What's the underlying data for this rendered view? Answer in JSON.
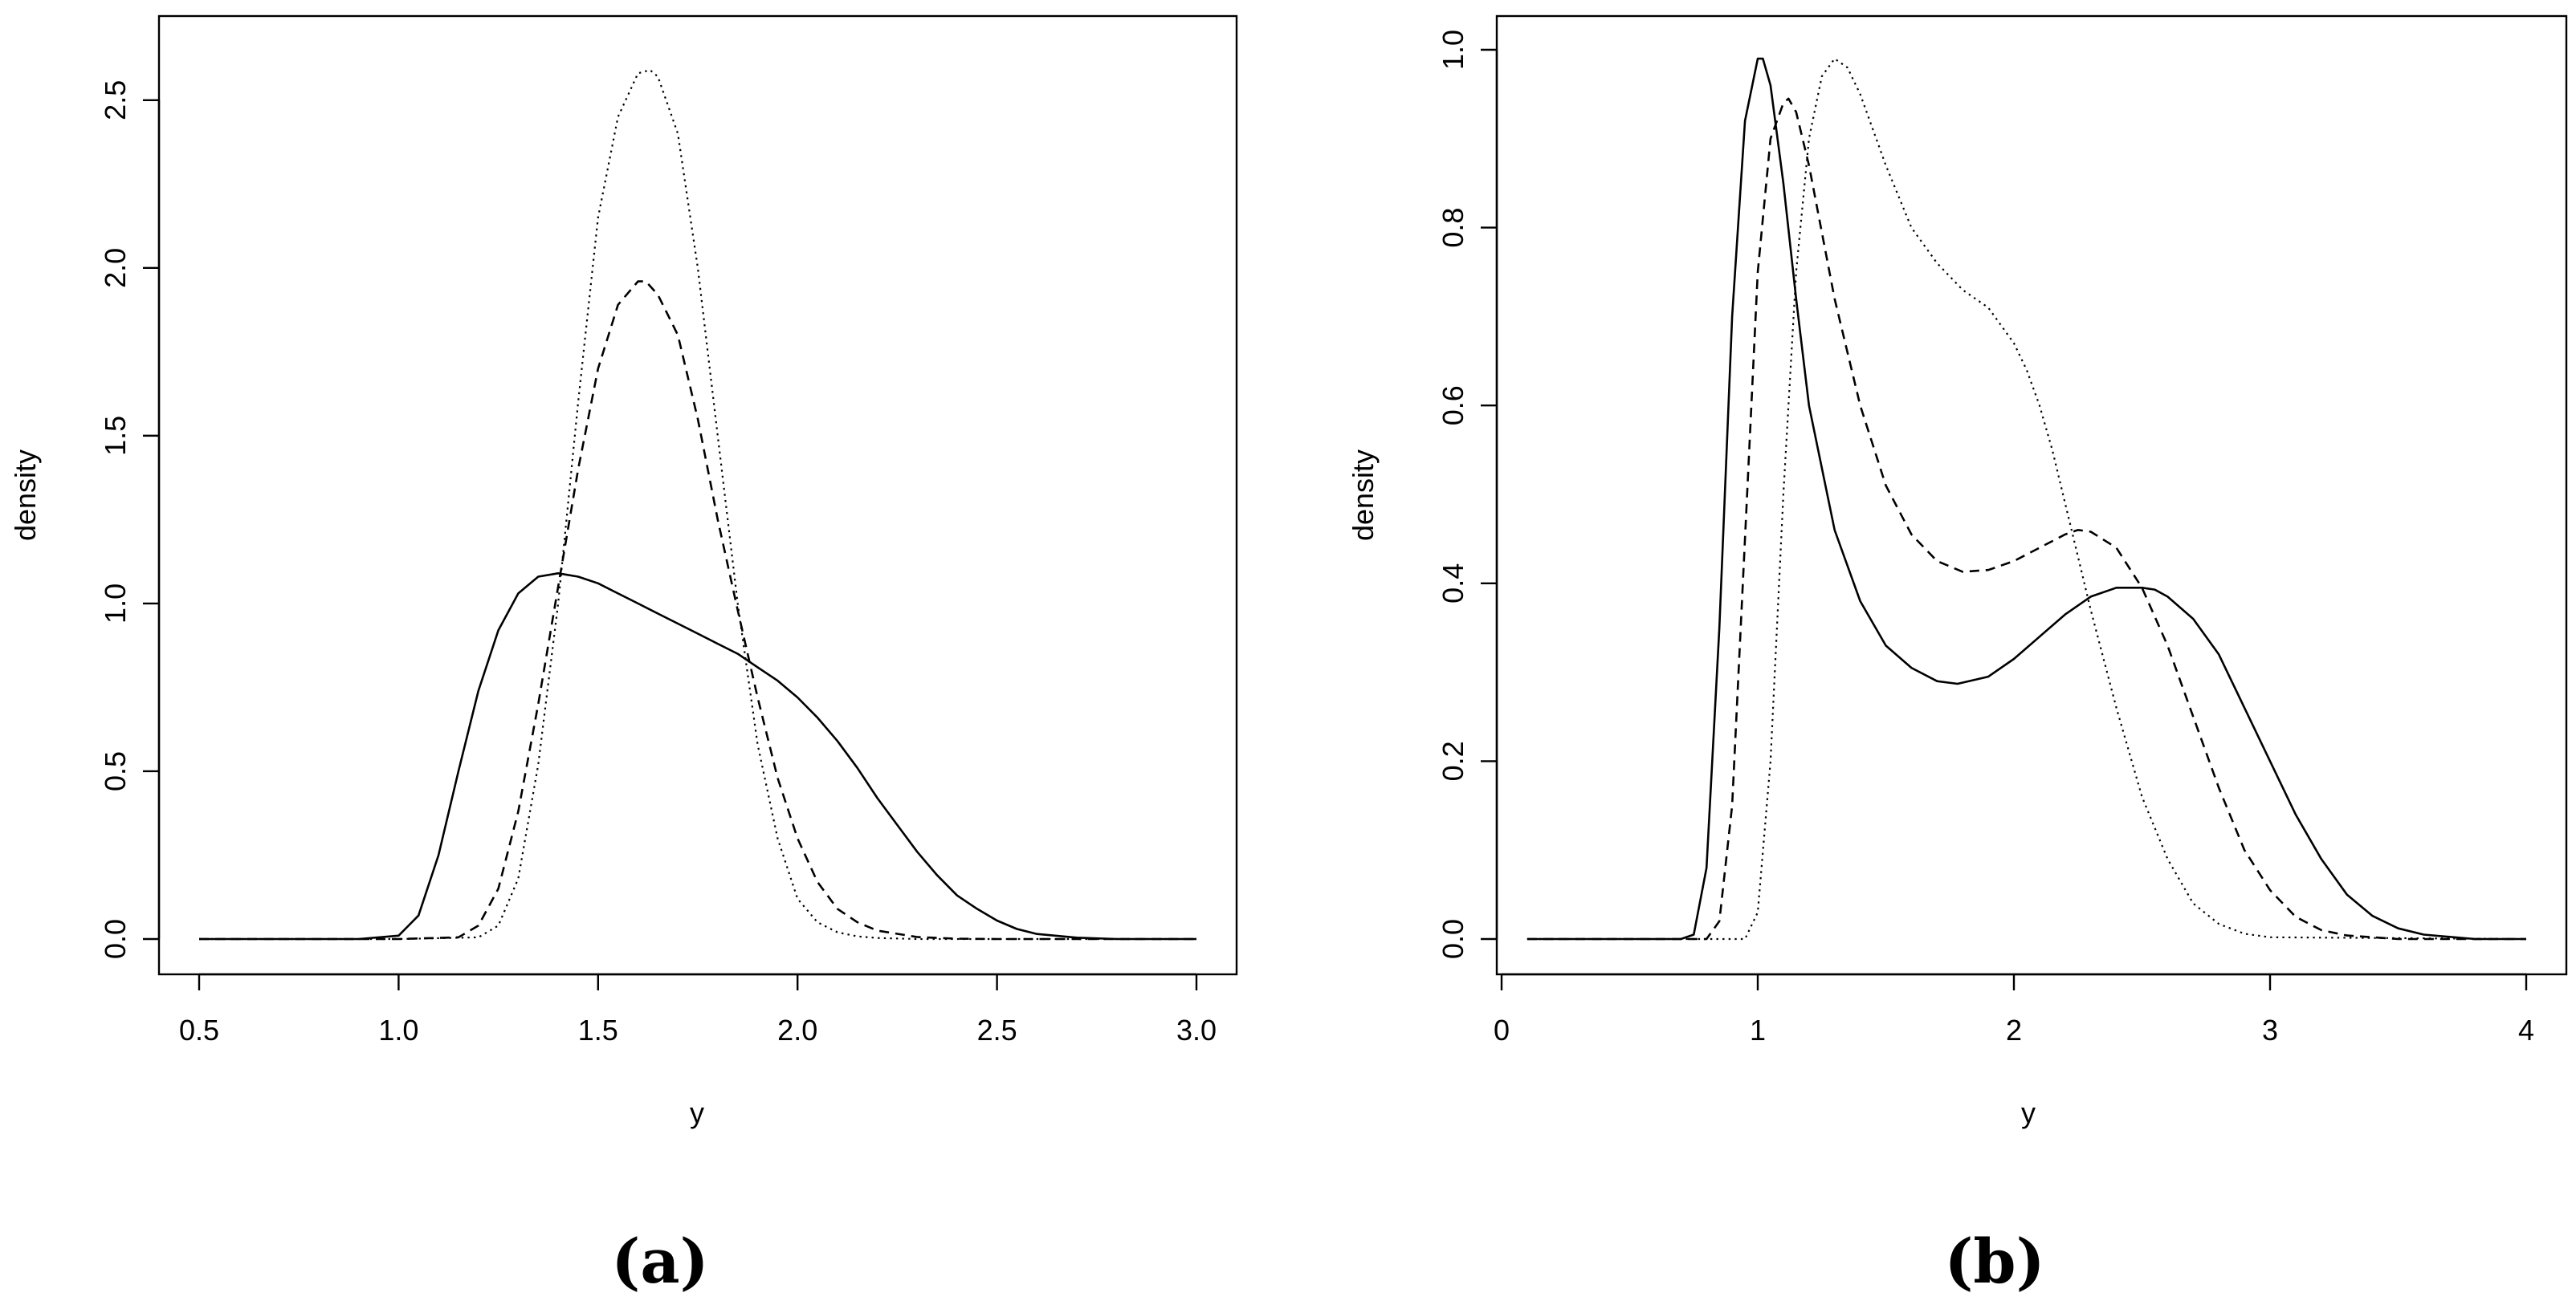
{
  "chart_data": [
    {
      "type": "line",
      "caption": "(a)",
      "xlabel": "y",
      "ylabel": "density",
      "xlim": [
        0.5,
        3.0
      ],
      "ylim": [
        0,
        2.6
      ],
      "xticks": [
        0.5,
        1.0,
        1.5,
        2.0,
        2.5,
        3.0
      ],
      "xtick_labels": [
        "0.5",
        "1.0",
        "1.5",
        "2.0",
        "2.5",
        "3.0"
      ],
      "yticks": [
        0.0,
        0.5,
        1.0,
        1.5,
        2.0,
        2.5
      ],
      "ytick_labels": [
        "0.0",
        "0.5",
        "1.0",
        "1.5",
        "2.0",
        "2.5"
      ],
      "grid": false,
      "series": [
        {
          "style": "solid",
          "x": [
            0.5,
            0.9,
            1.0,
            1.05,
            1.1,
            1.15,
            1.2,
            1.25,
            1.3,
            1.35,
            1.4,
            1.45,
            1.5,
            1.55,
            1.6,
            1.65,
            1.7,
            1.75,
            1.8,
            1.85,
            1.9,
            1.95,
            2.0,
            2.05,
            2.1,
            2.15,
            2.2,
            2.25,
            2.3,
            2.35,
            2.4,
            2.45,
            2.5,
            2.55,
            2.6,
            2.7,
            2.8,
            3.0
          ],
          "y": [
            0.0,
            0.0,
            0.01,
            0.07,
            0.25,
            0.5,
            0.74,
            0.92,
            1.03,
            1.08,
            1.09,
            1.08,
            1.06,
            1.03,
            1.0,
            0.97,
            0.94,
            0.91,
            0.88,
            0.85,
            0.81,
            0.77,
            0.72,
            0.66,
            0.59,
            0.51,
            0.42,
            0.34,
            0.26,
            0.19,
            0.13,
            0.09,
            0.055,
            0.03,
            0.015,
            0.004,
            0.0,
            0.0
          ]
        },
        {
          "style": "dashed",
          "x": [
            0.5,
            1.0,
            1.15,
            1.2,
            1.25,
            1.3,
            1.35,
            1.4,
            1.45,
            1.5,
            1.55,
            1.6,
            1.62,
            1.65,
            1.7,
            1.75,
            1.8,
            1.85,
            1.9,
            1.95,
            2.0,
            2.05,
            2.1,
            2.15,
            2.2,
            2.3,
            2.4,
            2.5,
            3.0
          ],
          "y": [
            0.0,
            0.0,
            0.005,
            0.04,
            0.15,
            0.38,
            0.7,
            1.05,
            1.4,
            1.7,
            1.89,
            1.96,
            1.96,
            1.92,
            1.8,
            1.55,
            1.25,
            0.98,
            0.72,
            0.48,
            0.3,
            0.17,
            0.09,
            0.05,
            0.025,
            0.006,
            0.001,
            0.0,
            0.0
          ]
        },
        {
          "style": "dotted",
          "x": [
            0.5,
            1.0,
            1.2,
            1.25,
            1.3,
            1.35,
            1.4,
            1.45,
            1.5,
            1.55,
            1.6,
            1.63,
            1.65,
            1.7,
            1.75,
            1.8,
            1.85,
            1.9,
            1.95,
            2.0,
            2.05,
            2.1,
            2.15,
            2.2,
            2.3,
            3.0
          ],
          "y": [
            0.0,
            0.0,
            0.005,
            0.04,
            0.18,
            0.52,
            1.0,
            1.6,
            2.15,
            2.45,
            2.58,
            2.59,
            2.57,
            2.4,
            2.0,
            1.5,
            1.0,
            0.58,
            0.3,
            0.12,
            0.05,
            0.02,
            0.008,
            0.003,
            0.0,
            0.0
          ]
        }
      ]
    },
    {
      "type": "line",
      "caption": "(b)",
      "xlabel": "y",
      "ylabel": "density",
      "xlim": [
        0,
        4
      ],
      "ylim": [
        0,
        1.0
      ],
      "xticks": [
        0,
        1,
        2,
        3,
        4
      ],
      "xtick_labels": [
        "0",
        "1",
        "2",
        "3",
        "4"
      ],
      "yticks": [
        0.0,
        0.2,
        0.4,
        0.6,
        0.8,
        1.0
      ],
      "ytick_labels": [
        "0.0",
        "0.2",
        "0.4",
        "0.6",
        "0.8",
        "1.0"
      ],
      "grid": false,
      "series": [
        {
          "style": "solid",
          "x": [
            0.1,
            0.7,
            0.75,
            0.8,
            0.85,
            0.9,
            0.95,
            1.0,
            1.02,
            1.05,
            1.1,
            1.15,
            1.2,
            1.3,
            1.4,
            1.5,
            1.6,
            1.7,
            1.78,
            1.9,
            2.0,
            2.1,
            2.2,
            2.3,
            2.4,
            2.5,
            2.55,
            2.6,
            2.7,
            2.8,
            2.9,
            3.0,
            3.1,
            3.2,
            3.3,
            3.4,
            3.5,
            3.6,
            3.8,
            4.0
          ],
          "y": [
            0.0,
            0.0,
            0.005,
            0.08,
            0.35,
            0.7,
            0.92,
            0.99,
            0.99,
            0.96,
            0.85,
            0.72,
            0.6,
            0.46,
            0.38,
            0.33,
            0.305,
            0.29,
            0.287,
            0.295,
            0.315,
            0.34,
            0.365,
            0.385,
            0.395,
            0.395,
            0.393,
            0.385,
            0.36,
            0.32,
            0.26,
            0.2,
            0.14,
            0.09,
            0.05,
            0.026,
            0.012,
            0.005,
            0.0,
            0.0
          ]
        },
        {
          "style": "dashed",
          "x": [
            0.1,
            0.8,
            0.85,
            0.9,
            0.95,
            1.0,
            1.05,
            1.1,
            1.12,
            1.15,
            1.2,
            1.3,
            1.4,
            1.5,
            1.6,
            1.7,
            1.8,
            1.9,
            2.0,
            2.1,
            2.2,
            2.25,
            2.3,
            2.4,
            2.5,
            2.6,
            2.7,
            2.8,
            2.9,
            3.0,
            3.1,
            3.2,
            3.3,
            3.5,
            4.0
          ],
          "y": [
            0.0,
            0.0,
            0.02,
            0.15,
            0.45,
            0.75,
            0.9,
            0.94,
            0.945,
            0.93,
            0.87,
            0.72,
            0.6,
            0.51,
            0.455,
            0.425,
            0.413,
            0.415,
            0.425,
            0.44,
            0.455,
            0.46,
            0.458,
            0.44,
            0.395,
            0.33,
            0.25,
            0.17,
            0.1,
            0.055,
            0.025,
            0.01,
            0.004,
            0.0,
            0.0
          ]
        },
        {
          "style": "dotted",
          "x": [
            0.1,
            0.95,
            1.0,
            1.05,
            1.1,
            1.15,
            1.2,
            1.25,
            1.3,
            1.35,
            1.4,
            1.5,
            1.6,
            1.7,
            1.8,
            1.9,
            2.0,
            2.05,
            2.1,
            2.15,
            2.2,
            2.25,
            2.3,
            2.4,
            2.5,
            2.6,
            2.7,
            2.8,
            2.9,
            3.0,
            4.0
          ],
          "y": [
            0.0,
            0.0,
            0.03,
            0.2,
            0.5,
            0.75,
            0.9,
            0.97,
            0.99,
            0.98,
            0.95,
            0.87,
            0.8,
            0.76,
            0.73,
            0.71,
            0.67,
            0.64,
            0.6,
            0.55,
            0.49,
            0.43,
            0.37,
            0.26,
            0.16,
            0.09,
            0.04,
            0.017,
            0.006,
            0.002,
            0.0
          ]
        }
      ]
    }
  ]
}
